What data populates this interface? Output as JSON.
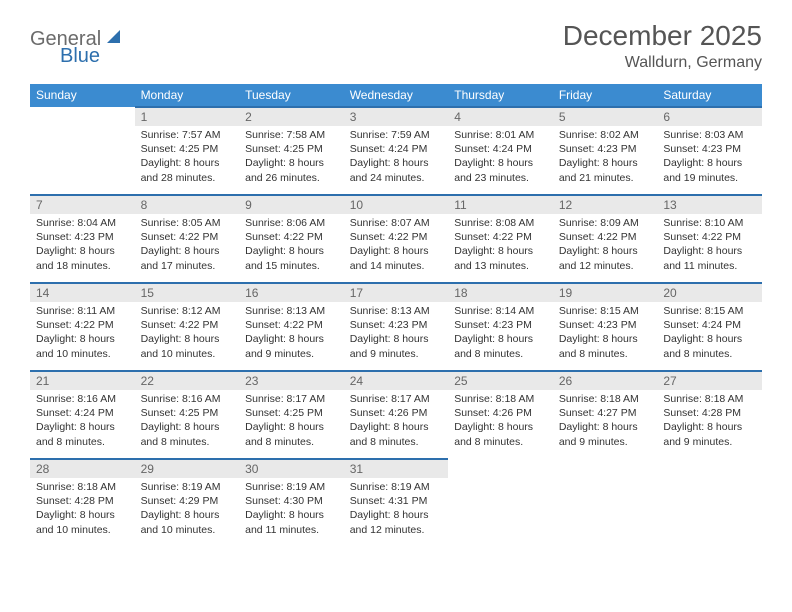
{
  "brand": {
    "part1": "General",
    "part2": "Blue"
  },
  "title": "December 2025",
  "location": "Walldurn, Germany",
  "colors": {
    "header_bg": "#3b8bd0",
    "header_fg": "#ffffff",
    "row_sep": "#2d6fad",
    "daynum_bg": "#e9e9e9",
    "daynum_fg": "#666666",
    "body_text": "#333333",
    "title_text": "#555555",
    "logo_gray": "#6b6b6b",
    "logo_blue": "#2d6fad"
  },
  "fonts": {
    "title_size_pt": 21,
    "location_size_pt": 12,
    "weekday_size_pt": 9,
    "daynum_size_pt": 9,
    "body_size_pt": 8
  },
  "weekdays": [
    "Sunday",
    "Monday",
    "Tuesday",
    "Wednesday",
    "Thursday",
    "Friday",
    "Saturday"
  ],
  "weeks": [
    [
      null,
      {
        "n": "1",
        "sr": "7:57 AM",
        "ss": "4:25 PM",
        "dl": "8 hours and 28 minutes."
      },
      {
        "n": "2",
        "sr": "7:58 AM",
        "ss": "4:25 PM",
        "dl": "8 hours and 26 minutes."
      },
      {
        "n": "3",
        "sr": "7:59 AM",
        "ss": "4:24 PM",
        "dl": "8 hours and 24 minutes."
      },
      {
        "n": "4",
        "sr": "8:01 AM",
        "ss": "4:24 PM",
        "dl": "8 hours and 23 minutes."
      },
      {
        "n": "5",
        "sr": "8:02 AM",
        "ss": "4:23 PM",
        "dl": "8 hours and 21 minutes."
      },
      {
        "n": "6",
        "sr": "8:03 AM",
        "ss": "4:23 PM",
        "dl": "8 hours and 19 minutes."
      }
    ],
    [
      {
        "n": "7",
        "sr": "8:04 AM",
        "ss": "4:23 PM",
        "dl": "8 hours and 18 minutes."
      },
      {
        "n": "8",
        "sr": "8:05 AM",
        "ss": "4:22 PM",
        "dl": "8 hours and 17 minutes."
      },
      {
        "n": "9",
        "sr": "8:06 AM",
        "ss": "4:22 PM",
        "dl": "8 hours and 15 minutes."
      },
      {
        "n": "10",
        "sr": "8:07 AM",
        "ss": "4:22 PM",
        "dl": "8 hours and 14 minutes."
      },
      {
        "n": "11",
        "sr": "8:08 AM",
        "ss": "4:22 PM",
        "dl": "8 hours and 13 minutes."
      },
      {
        "n": "12",
        "sr": "8:09 AM",
        "ss": "4:22 PM",
        "dl": "8 hours and 12 minutes."
      },
      {
        "n": "13",
        "sr": "8:10 AM",
        "ss": "4:22 PM",
        "dl": "8 hours and 11 minutes."
      }
    ],
    [
      {
        "n": "14",
        "sr": "8:11 AM",
        "ss": "4:22 PM",
        "dl": "8 hours and 10 minutes."
      },
      {
        "n": "15",
        "sr": "8:12 AM",
        "ss": "4:22 PM",
        "dl": "8 hours and 10 minutes."
      },
      {
        "n": "16",
        "sr": "8:13 AM",
        "ss": "4:22 PM",
        "dl": "8 hours and 9 minutes."
      },
      {
        "n": "17",
        "sr": "8:13 AM",
        "ss": "4:23 PM",
        "dl": "8 hours and 9 minutes."
      },
      {
        "n": "18",
        "sr": "8:14 AM",
        "ss": "4:23 PM",
        "dl": "8 hours and 8 minutes."
      },
      {
        "n": "19",
        "sr": "8:15 AM",
        "ss": "4:23 PM",
        "dl": "8 hours and 8 minutes."
      },
      {
        "n": "20",
        "sr": "8:15 AM",
        "ss": "4:24 PM",
        "dl": "8 hours and 8 minutes."
      }
    ],
    [
      {
        "n": "21",
        "sr": "8:16 AM",
        "ss": "4:24 PM",
        "dl": "8 hours and 8 minutes."
      },
      {
        "n": "22",
        "sr": "8:16 AM",
        "ss": "4:25 PM",
        "dl": "8 hours and 8 minutes."
      },
      {
        "n": "23",
        "sr": "8:17 AM",
        "ss": "4:25 PM",
        "dl": "8 hours and 8 minutes."
      },
      {
        "n": "24",
        "sr": "8:17 AM",
        "ss": "4:26 PM",
        "dl": "8 hours and 8 minutes."
      },
      {
        "n": "25",
        "sr": "8:18 AM",
        "ss": "4:26 PM",
        "dl": "8 hours and 8 minutes."
      },
      {
        "n": "26",
        "sr": "8:18 AM",
        "ss": "4:27 PM",
        "dl": "8 hours and 9 minutes."
      },
      {
        "n": "27",
        "sr": "8:18 AM",
        "ss": "4:28 PM",
        "dl": "8 hours and 9 minutes."
      }
    ],
    [
      {
        "n": "28",
        "sr": "8:18 AM",
        "ss": "4:28 PM",
        "dl": "8 hours and 10 minutes."
      },
      {
        "n": "29",
        "sr": "8:19 AM",
        "ss": "4:29 PM",
        "dl": "8 hours and 10 minutes."
      },
      {
        "n": "30",
        "sr": "8:19 AM",
        "ss": "4:30 PM",
        "dl": "8 hours and 11 minutes."
      },
      {
        "n": "31",
        "sr": "8:19 AM",
        "ss": "4:31 PM",
        "dl": "8 hours and 12 minutes."
      },
      null,
      null,
      null
    ]
  ],
  "labels": {
    "sunrise": "Sunrise:",
    "sunset": "Sunset:",
    "daylight": "Daylight:"
  }
}
